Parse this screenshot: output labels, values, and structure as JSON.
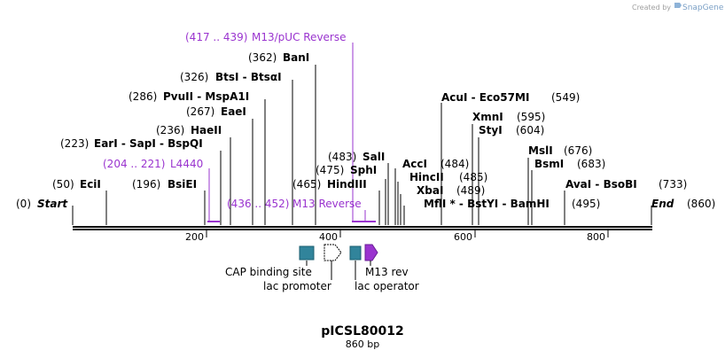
{
  "watermark": {
    "created_by": "Created by",
    "brand": "SnapGene"
  },
  "plasmid": {
    "name": "pICSL80012",
    "size_label": "860 bp",
    "length": 860
  },
  "ends": {
    "start": {
      "pos": "(0)",
      "label": "Start"
    },
    "end": {
      "label": "End",
      "pos": "(860)"
    }
  },
  "axis": {
    "ticks": [
      {
        "value": 200,
        "label": "200"
      },
      {
        "value": 400,
        "label": "400"
      },
      {
        "value": 600,
        "label": "600"
      },
      {
        "value": 800,
        "label": "800"
      }
    ]
  },
  "primers": [
    {
      "range": "(417 .. 439)",
      "name": "M13/pUC Reverse",
      "start": 417,
      "end": 439
    },
    {
      "range": "(204 .. 221)",
      "name": "L4440",
      "start": 204,
      "end": 221
    },
    {
      "range": "(436 .. 452)",
      "name": "M13 Reverse",
      "start": 436,
      "end": 452
    }
  ],
  "sites": [
    {
      "pos": "(50)",
      "name": "EciI",
      "bp": 50
    },
    {
      "pos": "(196)",
      "name": "BsiEI",
      "bp": 196
    },
    {
      "pos": "(223)",
      "name": "EarI - SapI - BspQI",
      "bp": 223
    },
    {
      "pos": "(236)",
      "name": "HaeII",
      "bp": 236
    },
    {
      "pos": "(267)",
      "name": "EaeI",
      "bp": 267
    },
    {
      "pos": "(286)",
      "name": "PvuII - MspA1I",
      "bp": 286
    },
    {
      "pos": "(326)",
      "name": "BtsI - BtsαI",
      "bp": 326
    },
    {
      "pos": "(362)",
      "name": "BanI",
      "bp": 362
    },
    {
      "pos": "(465)",
      "name": "HindIII",
      "bp": 465
    },
    {
      "pos": "(475)",
      "name": "SphI",
      "bp": 475
    },
    {
      "pos": "(483)",
      "name": "SalI",
      "bp": 483
    },
    {
      "pos": "(484)",
      "name": "AccI",
      "bp": 484
    },
    {
      "pos": "(485)",
      "name": "HincII",
      "bp": 485
    },
    {
      "pos": "(489)",
      "name": "XbaI",
      "bp": 489
    },
    {
      "pos": "",
      "name": "MflI * - BstYI - BamHI",
      "pos2": "(495)",
      "bp": 495
    },
    {
      "pos": "(549)",
      "name": "AcuI - Eco57MI",
      "bp": 549
    },
    {
      "pos": "(595)",
      "name": "XmnI",
      "bp": 595
    },
    {
      "pos": "(604)",
      "name": "StyI",
      "bp": 604
    },
    {
      "pos": "(676)",
      "name": "MslI",
      "bp": 676
    },
    {
      "pos": "(683)",
      "name": "BsmI",
      "bp": 683
    },
    {
      "pos": "(733)",
      "name": "AvaI - BsoBI",
      "bp": 733
    }
  ],
  "features": [
    {
      "name": "CAP binding site",
      "color": "#31849b"
    },
    {
      "name": "lac promoter",
      "color": "#ffffff"
    },
    {
      "name": "lac operator",
      "color": "#31849b"
    },
    {
      "name": "M13 rev",
      "color": "#9a34cf"
    }
  ],
  "colors": {
    "primer": "#9a34cf",
    "feature": "#31849b"
  }
}
